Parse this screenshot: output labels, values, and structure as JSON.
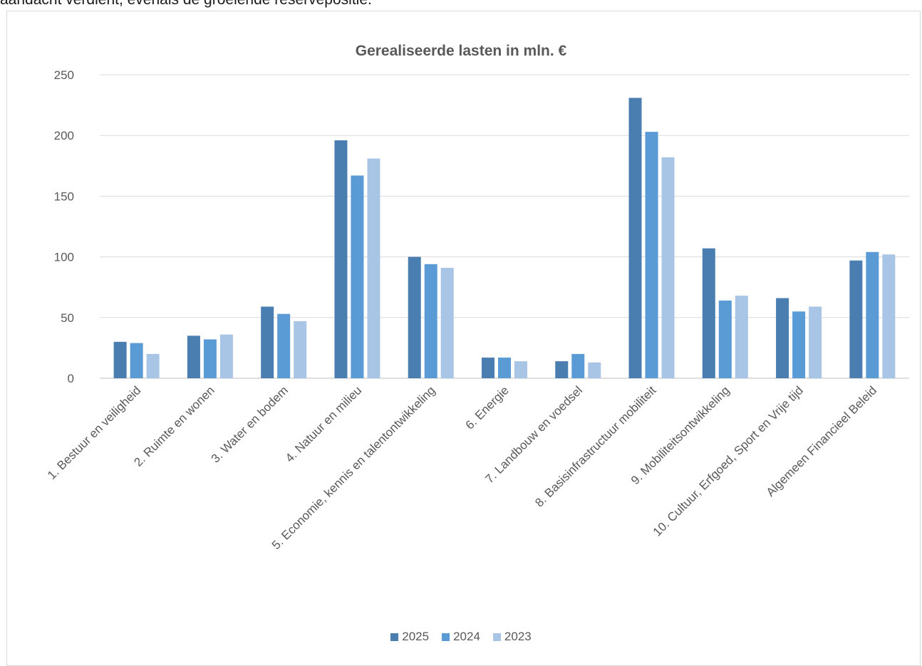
{
  "document": {
    "text_above": "aandacht verdient, evenals de groeiende reservepositie."
  },
  "chart_data": {
    "type": "bar",
    "title": "Gerealiseerde lasten in mln. €",
    "categories": [
      "1. Bestuur en veiligheid",
      "2. Ruimte en wonen",
      "3. Water en bodem",
      "4. Natuur en milieu",
      "5. Economie, kennis en talentontwikkeling",
      "6. Energie",
      "7. Landbouw en voedsel",
      "8. Basisinfrastructuur mobiliteit",
      "9. Mobiliteitsontwikkeling",
      "10. Cultuur, Erfgoed, Sport en Vrije tijd",
      "Algemeen Financieel Beleid"
    ],
    "series": [
      {
        "name": "2025",
        "color": "#4a7eb0",
        "values": [
          30,
          35,
          59,
          196,
          100,
          17,
          14,
          231,
          107,
          66,
          97
        ]
      },
      {
        "name": "2024",
        "color": "#5b9bd5",
        "values": [
          29,
          32,
          53,
          167,
          94,
          17,
          20,
          203,
          64,
          55,
          104
        ]
      },
      {
        "name": "2023",
        "color": "#a9c5e6",
        "values": [
          20,
          36,
          47,
          181,
          91,
          14,
          13,
          182,
          68,
          59,
          102
        ]
      }
    ],
    "ylim": [
      0,
      250
    ],
    "yticks": [
      0,
      50,
      100,
      150,
      200,
      250
    ],
    "xlabel": "",
    "ylabel": "",
    "grid": true,
    "legend_position": "bottom"
  }
}
